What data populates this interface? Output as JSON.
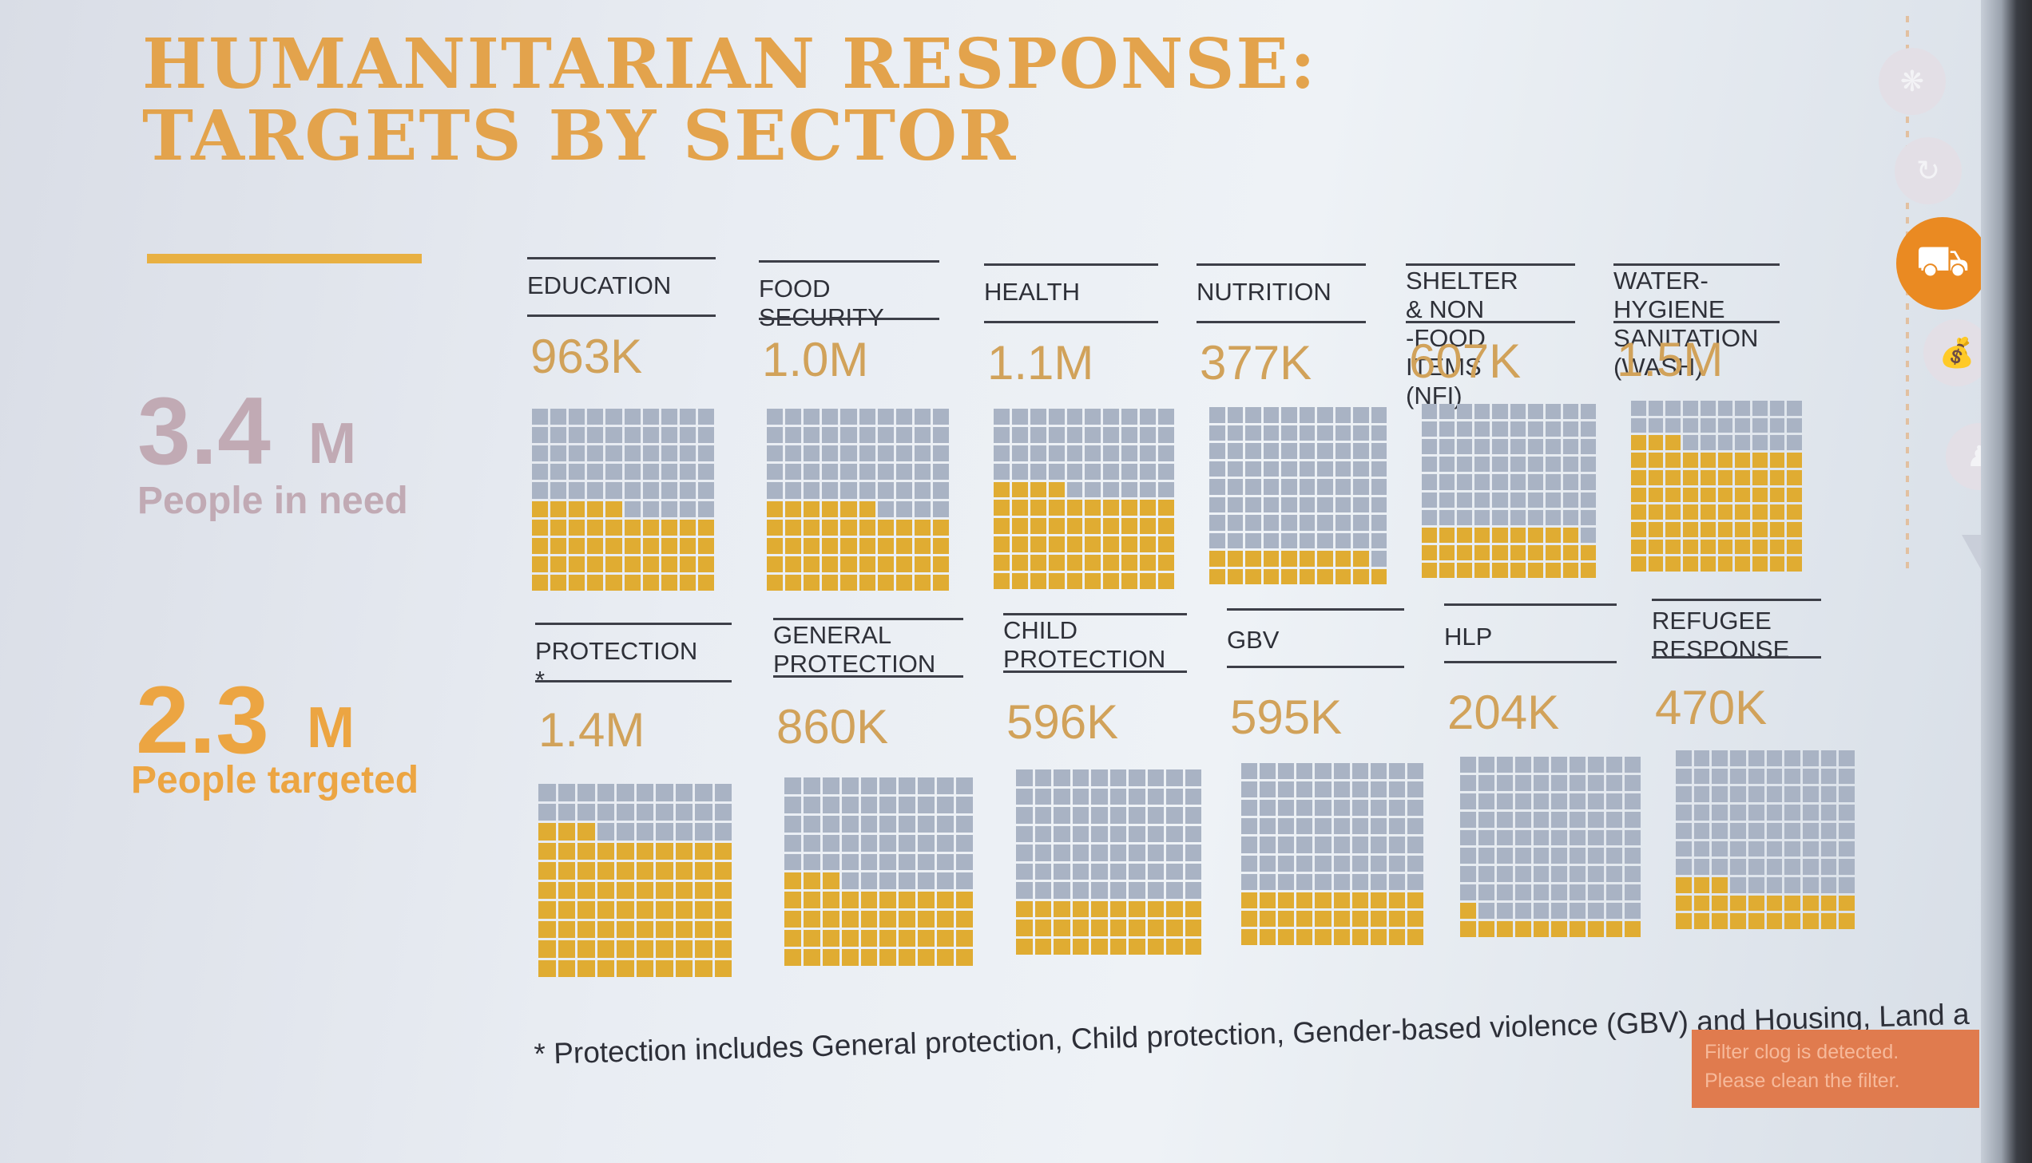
{
  "title": {
    "line1": "HUMANITARIAN RESPONSE:",
    "line2": "TARGETS BY SECTOR"
  },
  "colors": {
    "accent": "#e0ac32",
    "title": "#e3a34c",
    "grid_off": "#a9b3c4",
    "need": "#c1aab4",
    "targeted": "#eca542",
    "nav_active": "#ea8a22"
  },
  "summary": {
    "need": {
      "value": "3.4",
      "unit": "M",
      "label": "People in need"
    },
    "targeted": {
      "value": "2.3",
      "unit": "M",
      "label": "People targeted"
    }
  },
  "sectors_row1": [
    {
      "name": "EDUCATION",
      "value": "963K",
      "filled_cells": 45
    },
    {
      "name": "FOOD SECURITY",
      "value": "1.0M",
      "filled_cells": 46
    },
    {
      "name": "HEALTH",
      "value": "1.1M",
      "filled_cells": 54
    },
    {
      "name": "NUTRITION",
      "value": "377K",
      "filled_cells": 19
    },
    {
      "name": "SHELTER & NON\n-FOOD ITEMS (NFI)",
      "value": "607K",
      "filled_cells": 29
    },
    {
      "name": "WATER-HYGIENE\nSANITATION (WASH)",
      "value": "1.5M",
      "filled_cells": 73
    }
  ],
  "sectors_row2": [
    {
      "name": "PROTECTION *",
      "value": "1.4M",
      "filled_cells": 73
    },
    {
      "name": "GENERAL\nPROTECTION",
      "value": "860K",
      "filled_cells": 43
    },
    {
      "name": "CHILD\nPROTECTION",
      "value": "596K",
      "filled_cells": 30
    },
    {
      "name": "GBV",
      "value": "595K",
      "filled_cells": 30
    },
    {
      "name": "HLP",
      "value": "204K",
      "filled_cells": 11
    },
    {
      "name": "REFUGEE\nRESPONSE",
      "value": "470K",
      "filled_cells": 23
    }
  ],
  "footnote": "* Protection includes General protection, Child protection, Gender-based violence (GBV) and Housing, Land a",
  "overlay_warning": {
    "line1": "Filter clog is detected.",
    "line2": "Please clean the filter."
  },
  "nav_icons": [
    "sun-icon",
    "refresh-icon",
    "truck-icon",
    "money-bag-icon",
    "people-icon",
    "arrow-down-icon"
  ]
}
